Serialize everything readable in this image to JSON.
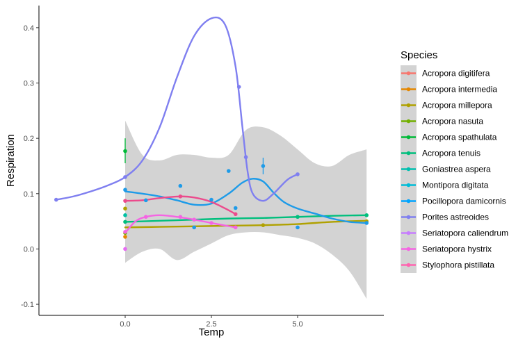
{
  "chart_data": {
    "type": "scatter",
    "xlabel": "Temp",
    "ylabel": "Respiration",
    "xlim": [
      -2.5,
      7.5
    ],
    "ylim": [
      -0.12,
      0.44
    ],
    "x_ticks": [
      0.0,
      2.5,
      5.0
    ],
    "x_tick_labels": [
      "0.0",
      "2.5",
      "5.0"
    ],
    "y_ticks": [
      -0.1,
      0.0,
      0.1,
      0.2,
      0.3,
      0.4
    ],
    "y_tick_labels": [
      "-0.1",
      "0.0",
      "0.1",
      "0.2",
      "0.3",
      "0.4"
    ],
    "grid": false,
    "legend": {
      "title": "Species",
      "placement": "right"
    },
    "confidence_band": {
      "color": "#d3d3d3",
      "x": [
        0,
        0.5,
        1,
        1.5,
        2,
        2.5,
        3,
        3.5,
        4,
        4.5,
        5,
        5.5,
        6,
        6.5,
        7
      ],
      "lower": [
        -0.025,
        -0.005,
        0.0,
        -0.02,
        -0.005,
        0.01,
        0.025,
        0.03,
        0.03,
        0.025,
        0.02,
        0.01,
        -0.01,
        -0.04,
        -0.09
      ],
      "upper": [
        0.232,
        0.17,
        0.16,
        0.17,
        0.17,
        0.165,
        0.17,
        0.215,
        0.22,
        0.205,
        0.18,
        0.155,
        0.15,
        0.17,
        0.18
      ]
    },
    "series": [
      {
        "name": "Acropora digitifera",
        "color": "#E76BF3",
        "legend_color": "#F8766D",
        "points": [
          [
            0,
            0.0
          ]
        ],
        "curve": []
      },
      {
        "name": "Acropora intermedia",
        "color": "#E58700",
        "legend_color": "#E58700",
        "points": [
          [
            0,
            0.022
          ]
        ],
        "curve": []
      },
      {
        "name": "Acropora millepora",
        "color": "#B0A100",
        "legend_color": "#B0A100",
        "points": [
          [
            0,
            0.073
          ],
          [
            4,
            0.043
          ],
          [
            7,
            0.05
          ]
        ],
        "curve": [
          [
            0,
            0.039
          ],
          [
            1,
            0.04
          ],
          [
            2,
            0.041
          ],
          [
            3,
            0.042
          ],
          [
            4,
            0.043
          ],
          [
            5,
            0.045
          ],
          [
            6,
            0.049
          ],
          [
            7,
            0.051
          ]
        ]
      },
      {
        "name": "Acropora nasuta",
        "color": "#72B000",
        "legend_color": "#72B000",
        "points": [
          [
            0,
            0.029
          ]
        ],
        "curve": []
      },
      {
        "name": "Acropora spathulata",
        "color": "#00BA38",
        "legend_color": "#00BA38",
        "points": [
          [
            0,
            0.177
          ]
        ],
        "error_bars": [
          [
            0,
            0.155,
            0.2
          ]
        ],
        "curve": []
      },
      {
        "name": "Acropora tenuis",
        "color": "#00BF7D",
        "legend_color": "#00BF7D",
        "points": [
          [
            0,
            0.049
          ],
          [
            5,
            0.058
          ],
          [
            7,
            0.061
          ]
        ],
        "curve": [
          [
            0,
            0.049
          ],
          [
            1,
            0.051
          ],
          [
            2,
            0.053
          ],
          [
            3,
            0.055
          ],
          [
            4,
            0.056
          ],
          [
            5,
            0.058
          ],
          [
            6,
            0.06
          ],
          [
            7,
            0.061
          ]
        ]
      },
      {
        "name": "Goniastrea aspera",
        "color": "#00C1A3",
        "legend_color": "#00C0AF",
        "points": [
          [
            0,
            0.061
          ]
        ],
        "curve": []
      },
      {
        "name": "Montipora digitata",
        "color": "#00BCD8",
        "legend_color": "#00BCD8",
        "points": [],
        "curve": []
      },
      {
        "name": "Pocillopora damicornis",
        "color": "#1E9BE8",
        "legend_color": "#00A5FF",
        "points": [
          [
            0,
            0.107
          ],
          [
            0.6,
            0.088
          ],
          [
            1.6,
            0.114
          ],
          [
            2,
            0.039
          ],
          [
            2.5,
            0.089
          ],
          [
            3,
            0.141
          ],
          [
            3.2,
            0.074
          ],
          [
            4,
            0.15
          ],
          [
            5,
            0.039
          ],
          [
            7,
            0.047
          ]
        ],
        "error_bars": [
          [
            4,
            0.135,
            0.165
          ]
        ],
        "curve": [
          [
            0,
            0.104
          ],
          [
            0.5,
            0.1
          ],
          [
            1,
            0.095
          ],
          [
            1.5,
            0.088
          ],
          [
            2,
            0.08
          ],
          [
            2.5,
            0.082
          ],
          [
            3,
            0.1
          ],
          [
            3.4,
            0.12
          ],
          [
            3.7,
            0.127
          ],
          [
            4,
            0.122
          ],
          [
            4.3,
            0.102
          ],
          [
            4.6,
            0.085
          ],
          [
            5,
            0.073
          ],
          [
            5.5,
            0.064
          ],
          [
            6,
            0.055
          ],
          [
            6.5,
            0.049
          ],
          [
            7,
            0.047
          ]
        ]
      },
      {
        "name": "Porites astreoides",
        "color": "#7F7FF0",
        "legend_color": "#7F7FF0",
        "points": [
          [
            -2,
            0.089
          ],
          [
            0,
            0.13
          ],
          [
            3.3,
            0.293
          ],
          [
            3.5,
            0.166
          ],
          [
            5,
            0.135
          ]
        ],
        "curve": [
          [
            -2,
            0.089
          ],
          [
            -1.5,
            0.095
          ],
          [
            -1,
            0.104
          ],
          [
            -0.5,
            0.115
          ],
          [
            0,
            0.13
          ],
          [
            0.5,
            0.16
          ],
          [
            1,
            0.22
          ],
          [
            1.5,
            0.31
          ],
          [
            2,
            0.385
          ],
          [
            2.5,
            0.417
          ],
          [
            2.9,
            0.405
          ],
          [
            3.2,
            0.33
          ],
          [
            3.4,
            0.22
          ],
          [
            3.55,
            0.14
          ],
          [
            3.7,
            0.1
          ],
          [
            4,
            0.087
          ],
          [
            4.3,
            0.1
          ],
          [
            4.7,
            0.125
          ],
          [
            5,
            0.135
          ]
        ]
      },
      {
        "name": "Seriatopora caliendrum",
        "color": "#C77CFF",
        "legend_color": "#C77CFF",
        "points": [],
        "curve": []
      },
      {
        "name": "Seriatopora hystrix",
        "color": "#F564E3",
        "legend_color": "#F564E3",
        "points": [
          [
            0,
            0.031
          ],
          [
            0.6,
            0.058
          ],
          [
            1.6,
            0.058
          ],
          [
            2,
            0.053
          ],
          [
            2.5,
            0.047
          ],
          [
            3.2,
            0.039
          ]
        ],
        "curve": [
          [
            0,
            0.029
          ],
          [
            0.3,
            0.05
          ],
          [
            0.6,
            0.058
          ],
          [
            1,
            0.061
          ],
          [
            1.5,
            0.058
          ],
          [
            2,
            0.053
          ],
          [
            2.5,
            0.047
          ],
          [
            3.2,
            0.039
          ]
        ]
      },
      {
        "name": "Stylophora pistillata",
        "color": "#EC4A8C",
        "legend_color": "#FF64B0",
        "points": [
          [
            0,
            0.087
          ],
          [
            1.6,
            0.095
          ],
          [
            3.2,
            0.063
          ]
        ],
        "curve": [
          [
            0,
            0.087
          ],
          [
            0.5,
            0.088
          ],
          [
            1,
            0.092
          ],
          [
            1.6,
            0.095
          ],
          [
            2,
            0.093
          ],
          [
            2.5,
            0.085
          ],
          [
            3,
            0.07
          ],
          [
            3.2,
            0.063
          ]
        ]
      }
    ]
  }
}
